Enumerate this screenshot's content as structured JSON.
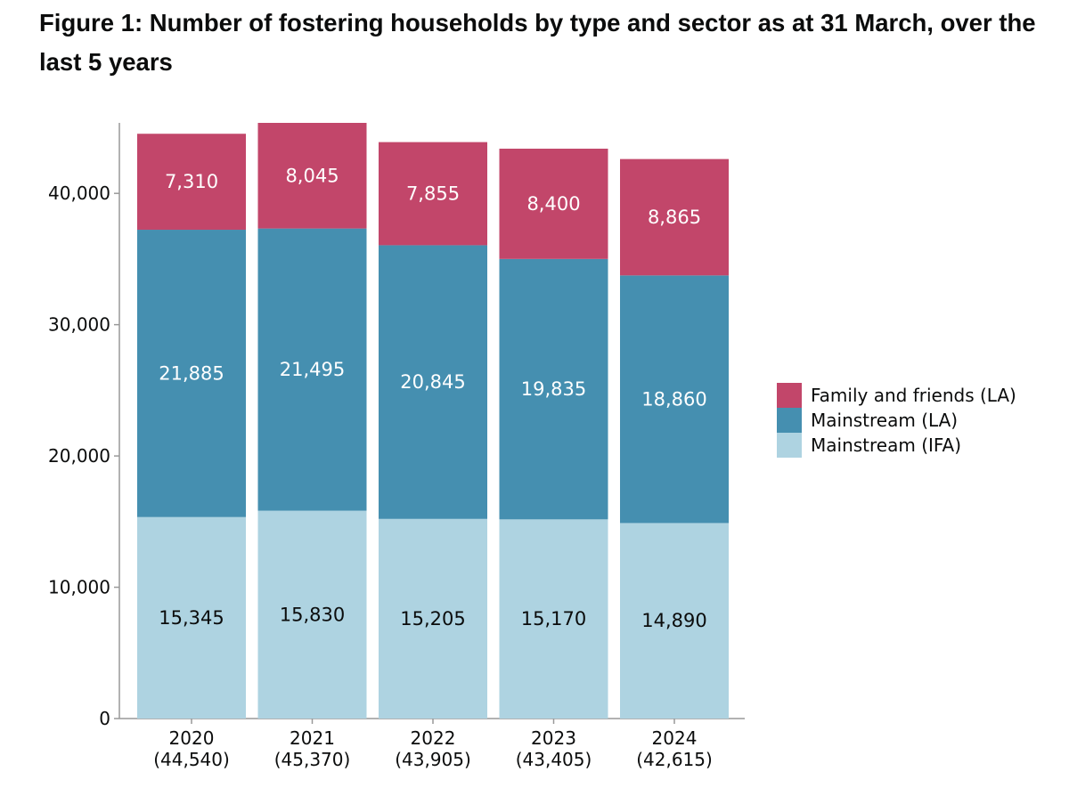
{
  "title": "Figure 1: Number of fostering households by type and sector as at 31 March, over the last 5 years",
  "colors": {
    "family_and_friends_la": "#c2466a",
    "mainstream_la": "#458fb0",
    "mainstream_ifa": "#aed3e1",
    "axis": "#999999"
  },
  "chart_data": {
    "type": "bar",
    "stacked": true,
    "categories": [
      "2020",
      "2021",
      "2022",
      "2023",
      "2024"
    ],
    "category_totals": [
      "(44,540)",
      "(45,370)",
      "(43,905)",
      "(43,405)",
      "(42,615)"
    ],
    "series": [
      {
        "name": "Mainstream (IFA)",
        "values": [
          15345,
          15830,
          15205,
          15170,
          14890
        ],
        "labels": [
          "15,345",
          "15,830",
          "15,205",
          "15,170",
          "14,890"
        ]
      },
      {
        "name": "Mainstream (LA)",
        "values": [
          21885,
          21495,
          20845,
          19835,
          18860
        ],
        "labels": [
          "21,885",
          "21,495",
          "20,845",
          "19,835",
          "18,860"
        ]
      },
      {
        "name": "Family and friends (LA)",
        "values": [
          7310,
          8045,
          7855,
          8400,
          8865
        ],
        "labels": [
          "7,310",
          "8,045",
          "7,855",
          "8,400",
          "8,865"
        ]
      }
    ],
    "legend": [
      "Family and friends (LA)",
      "Mainstream (LA)",
      "Mainstream (IFA)"
    ],
    "yticks": [
      0,
      10000,
      20000,
      30000,
      40000
    ],
    "ytick_labels": [
      "0",
      "10,000",
      "20,000",
      "30,000",
      "40,000"
    ],
    "ylim": [
      0,
      45370
    ],
    "legend_position": "right",
    "grid": false
  }
}
